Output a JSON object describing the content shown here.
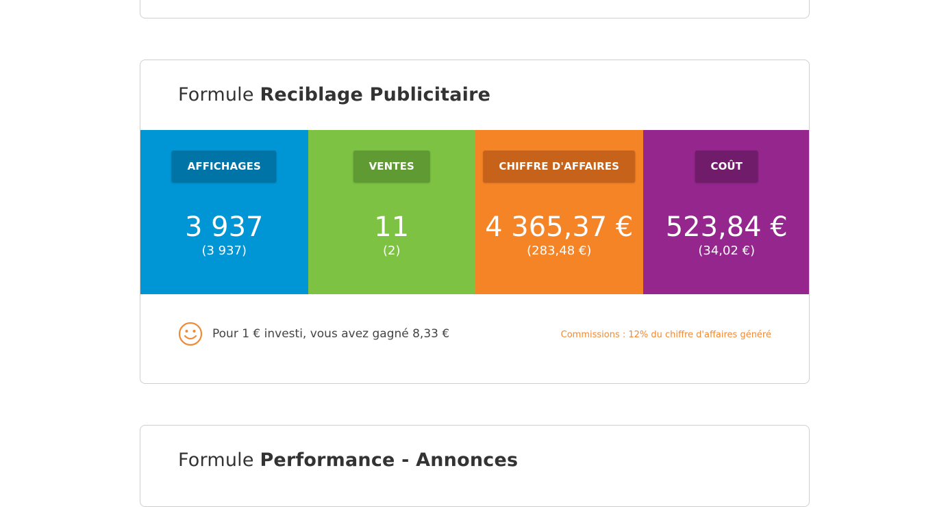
{
  "colors": {
    "affichages": "#0095d4",
    "affichages_badge": "#0074a6",
    "ventes": "#7dc243",
    "ventes_badge": "#5f9a33",
    "ca": "#f58426",
    "ca_badge": "#c66219",
    "cout": "#94268d",
    "cout_badge": "#701c6b",
    "accent_orange": "#f08a33"
  },
  "reciblage": {
    "title_prefix": "Formule",
    "title_name": "Reciblage Publicitaire",
    "stats": [
      {
        "key": "affichages",
        "label": "AFFICHAGES",
        "value": "3 937",
        "sub": "(3 937)"
      },
      {
        "key": "ventes",
        "label": "VENTES",
        "value": "11",
        "sub": "(2)"
      },
      {
        "key": "ca",
        "label": "CHIFFRE D'AFFAIRES",
        "value": "4 365,37 €",
        "sub": "(283,48 €)"
      },
      {
        "key": "cout",
        "label": "COÛT",
        "value": "523,84 €",
        "sub": "(34,02 €)"
      }
    ],
    "footer": {
      "icon": "smiley-icon",
      "gain_text": "Pour 1 € investi, vous avez gagné 8,33 €",
      "commission_text": "Commissions : 12% du chiffre d'affaires généré"
    }
  },
  "performance": {
    "title_prefix": "Formule",
    "title_name": "Performance - Annonces"
  }
}
